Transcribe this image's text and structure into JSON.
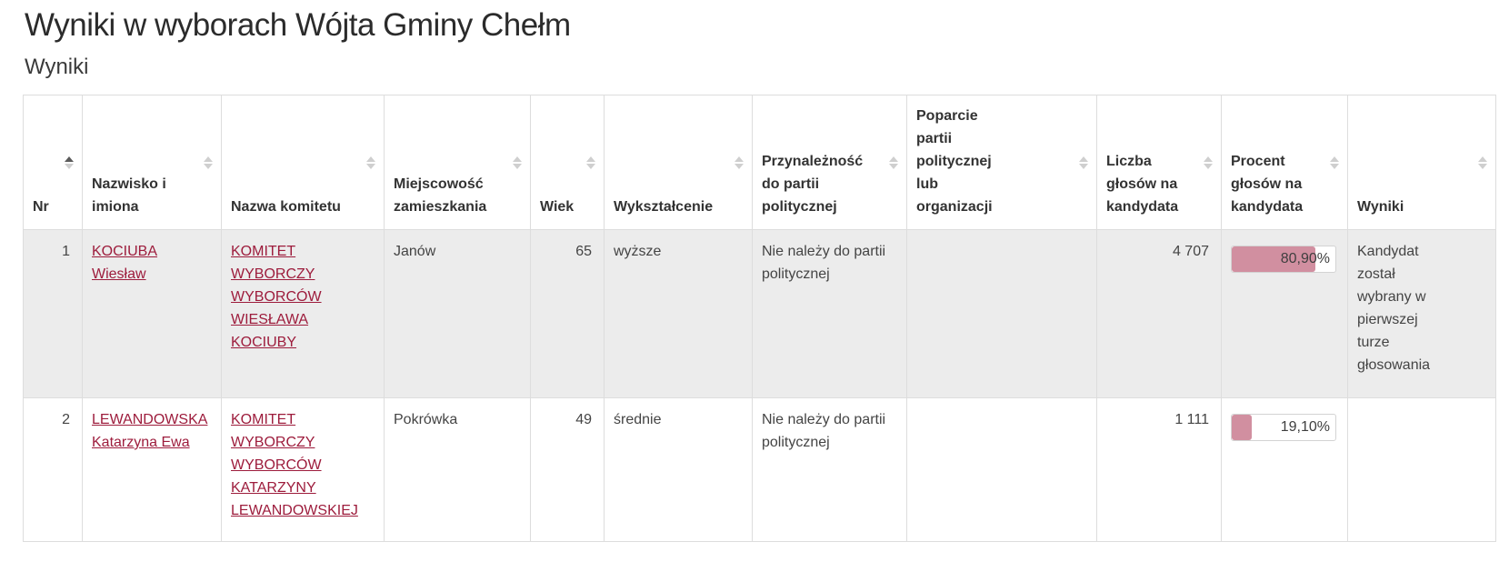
{
  "page": {
    "title": "Wyniki w wyborach Wójta Gminy Chełm",
    "subtitle": "Wyniki"
  },
  "table": {
    "columns": [
      {
        "label": "Nr",
        "sorted": "asc"
      },
      {
        "label": "Nazwisko i imiona",
        "sorted": "none"
      },
      {
        "label": "Nazwa komitetu",
        "sorted": "none"
      },
      {
        "label": "Miejscowość zamieszkania",
        "sorted": "none"
      },
      {
        "label": "Wiek",
        "sorted": "none"
      },
      {
        "label": "Wykształcenie",
        "sorted": "none"
      },
      {
        "label": "Przynależność do partii politycznej",
        "sorted": "none"
      },
      {
        "label": "Poparcie partii politycznej lub organizacji",
        "sorted": "none"
      },
      {
        "label": "Liczba głosów na kandydata",
        "sorted": "none"
      },
      {
        "label": "Procent głosów na kandydata",
        "sorted": "none"
      },
      {
        "label": "Wyniki",
        "sorted": "none"
      }
    ],
    "rows": [
      {
        "nr": "1",
        "surname": "KOCIUBA",
        "given_names": "Wiesław",
        "committee": "KOMITET WYBORCZY WYBORCÓW WIESŁAWA KOCIUBY",
        "residence": "Janów",
        "age": "65",
        "education": "wyższe",
        "party_membership": "Nie należy do partii politycznej",
        "party_support": "",
        "votes": "4 707",
        "percent": "80,90%",
        "percent_value": 80.9,
        "result": "Kandydat został wybrany w pierwszej turze głosowania"
      },
      {
        "nr": "2",
        "surname": "LEWANDOWSKA",
        "given_names": "Katarzyna Ewa",
        "committee": "KOMITET WYBORCZY WYBORCÓW KATARZYNY LEWANDOWSKIEJ",
        "residence": "Pokrówka",
        "age": "49",
        "education": "średnie",
        "party_membership": "Nie należy do partii politycznej",
        "party_support": "",
        "votes": "1 111",
        "percent": "19,10%",
        "percent_value": 19.1,
        "result": ""
      }
    ]
  },
  "colors": {
    "link": "#9d1c3c",
    "bar": "#d18fa0",
    "stripe": "#ececec",
    "border": "#dddddd",
    "header_text": "#333333",
    "body_text": "#444444",
    "sort_active": "#5b5b5b",
    "sort_inactive": "#cfcfcf"
  }
}
